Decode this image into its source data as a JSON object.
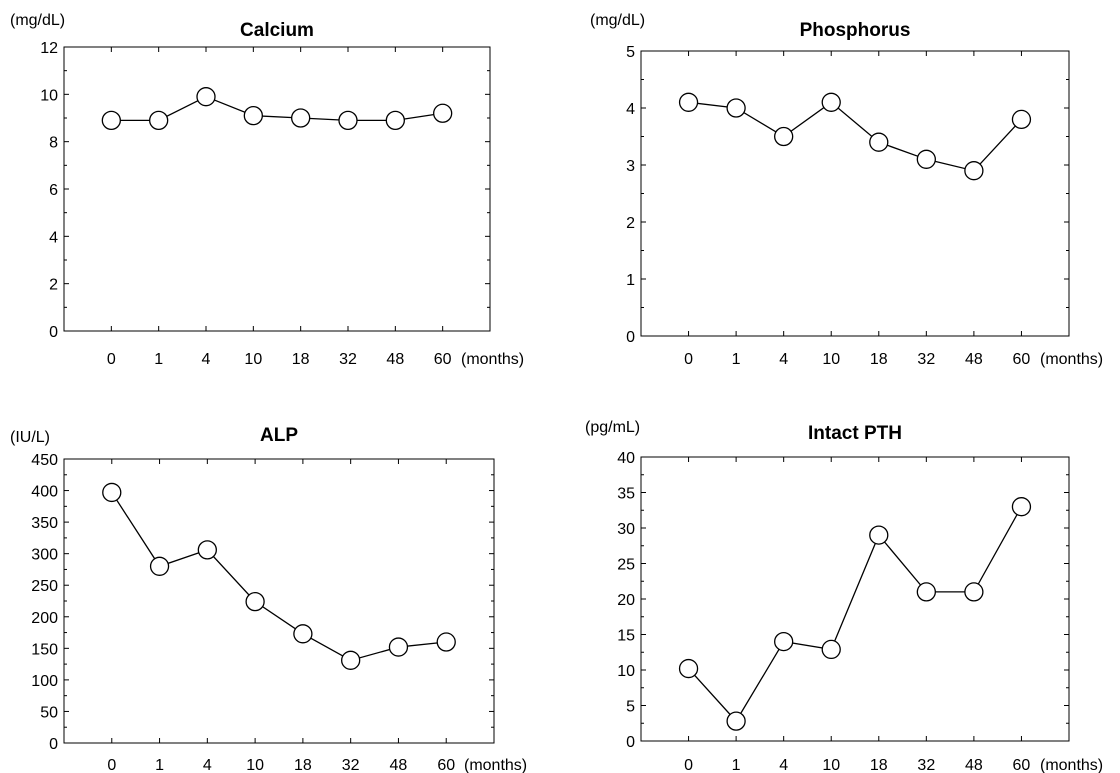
{
  "chart_data": [
    {
      "type": "line",
      "title": "Calcium",
      "ylabel": "(mg/dL)",
      "xunit": "(months)",
      "categories": [
        "0",
        "1",
        "4",
        "10",
        "18",
        "32",
        "48",
        "60"
      ],
      "values": [
        8.9,
        8.9,
        9.9,
        9.1,
        9.0,
        8.9,
        8.9,
        9.2
      ],
      "ylim": [
        0,
        12
      ],
      "yticks": [
        0,
        2,
        4,
        6,
        8,
        10,
        12
      ],
      "yminor": 1,
      "grid": false,
      "legend": "none"
    },
    {
      "type": "line",
      "title": "Phosphorus",
      "ylabel": "(mg/dL)",
      "xunit": "(months)",
      "categories": [
        "0",
        "1",
        "4",
        "10",
        "18",
        "32",
        "48",
        "60"
      ],
      "values": [
        4.1,
        4.0,
        3.5,
        4.1,
        3.4,
        3.1,
        2.9,
        3.8
      ],
      "ylim": [
        0,
        5
      ],
      "yticks": [
        0,
        1,
        2,
        3,
        4,
        5
      ],
      "yminor": 0.5,
      "grid": false,
      "legend": "none"
    },
    {
      "type": "line",
      "title": "ALP",
      "ylabel": "(IU/L)",
      "xunit": "(months)",
      "categories": [
        "0",
        "1",
        "4",
        "10",
        "18",
        "32",
        "48",
        "60"
      ],
      "values": [
        397,
        280,
        306,
        224,
        173,
        131,
        152,
        160
      ],
      "ylim": [
        0,
        450
      ],
      "yticks": [
        0,
        50,
        100,
        150,
        200,
        250,
        300,
        350,
        400,
        450
      ],
      "yminor": 25,
      "grid": false,
      "legend": "none"
    },
    {
      "type": "line",
      "title": "Intact PTH",
      "ylabel": "(pg/mL)",
      "xunit": "(months)",
      "categories": [
        "0",
        "1",
        "4",
        "10",
        "18",
        "32",
        "48",
        "60"
      ],
      "values": [
        10.2,
        2.8,
        14.0,
        12.9,
        29.0,
        21.0,
        21.0,
        33.0
      ],
      "ylim": [
        0,
        40
      ],
      "yticks": [
        0,
        5,
        10,
        15,
        20,
        25,
        30,
        35,
        40
      ],
      "yminor": 2.5,
      "grid": false,
      "legend": "none"
    }
  ]
}
